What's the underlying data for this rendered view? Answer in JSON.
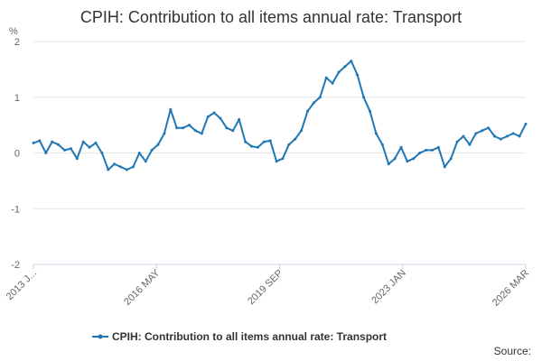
{
  "chart_data": {
    "type": "line",
    "title": "CPIH: Contribution to all items annual rate: Transport",
    "ylabel": "%",
    "xlabel": "",
    "ylim": [
      -2,
      2
    ],
    "yticks": [
      2,
      1,
      0,
      -1,
      -2
    ],
    "xtick_labels": [
      "2013 J...",
      "2016 MAY",
      "2019 SEP",
      "2023 JAN",
      "2026 MAR"
    ],
    "grid": true,
    "legend_position": "bottom",
    "series": [
      {
        "name": "CPIH: Contribution to all items annual rate: Transport",
        "color": "#1f77b4",
        "x": [
          "2013-01",
          "2013-03",
          "2013-05",
          "2013-07",
          "2013-09",
          "2013-11",
          "2014-01",
          "2014-03",
          "2014-05",
          "2014-07",
          "2014-09",
          "2014-11",
          "2015-01",
          "2015-03",
          "2015-05",
          "2015-07",
          "2015-09",
          "2015-11",
          "2016-01",
          "2016-03",
          "2016-05",
          "2016-07",
          "2016-09",
          "2016-11",
          "2017-01",
          "2017-03",
          "2017-05",
          "2017-07",
          "2017-09",
          "2017-11",
          "2018-01",
          "2018-03",
          "2018-05",
          "2018-07",
          "2018-09",
          "2018-11",
          "2019-01",
          "2019-03",
          "2019-05",
          "2019-07",
          "2019-09",
          "2019-11",
          "2020-01",
          "2020-03",
          "2020-05",
          "2020-07",
          "2020-09",
          "2020-11",
          "2021-01",
          "2021-03",
          "2021-05",
          "2021-07",
          "2021-09",
          "2021-11",
          "2022-01",
          "2022-03",
          "2022-05",
          "2022-07",
          "2022-09",
          "2022-11",
          "2023-01",
          "2023-03",
          "2023-05",
          "2023-07",
          "2023-09",
          "2023-11",
          "2024-01",
          "2024-03",
          "2024-05",
          "2024-07",
          "2024-09",
          "2024-11",
          "2025-01",
          "2025-03",
          "2025-05",
          "2025-07",
          "2025-09",
          "2025-11",
          "2026-01",
          "2026-03"
        ],
        "values": [
          0.18,
          0.22,
          0.0,
          0.2,
          0.15,
          0.05,
          0.08,
          -0.1,
          0.2,
          0.1,
          0.18,
          0.0,
          -0.3,
          -0.2,
          -0.25,
          -0.3,
          -0.25,
          0.0,
          -0.15,
          0.05,
          0.15,
          0.35,
          0.78,
          0.45,
          0.45,
          0.5,
          0.4,
          0.35,
          0.65,
          0.72,
          0.62,
          0.45,
          0.4,
          0.6,
          0.2,
          0.12,
          0.1,
          0.2,
          0.22,
          -0.15,
          -0.1,
          0.15,
          0.25,
          0.4,
          0.75,
          0.9,
          1.0,
          1.35,
          1.25,
          1.45,
          1.55,
          1.65,
          1.4,
          1.0,
          0.75,
          0.35,
          0.15,
          -0.2,
          -0.1,
          0.1,
          -0.15,
          -0.1,
          0.0,
          0.05,
          0.05,
          0.1,
          -0.25,
          -0.1,
          0.2,
          0.3,
          0.15,
          0.35,
          0.4,
          0.45,
          0.3,
          0.25,
          0.3,
          0.35,
          0.3,
          0.52
        ]
      }
    ]
  },
  "source_label": "Source:"
}
